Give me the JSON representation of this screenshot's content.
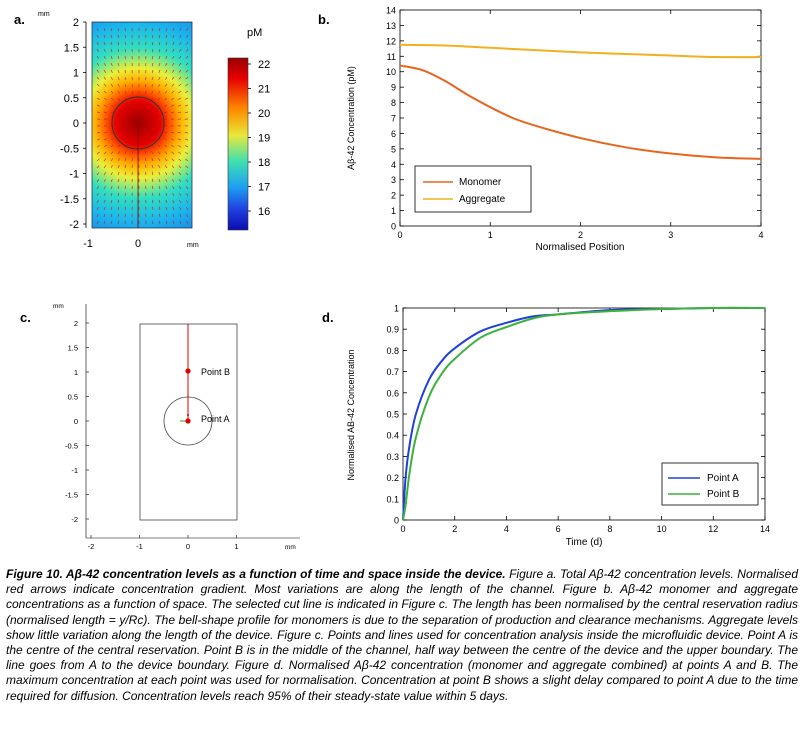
{
  "panels": {
    "a": {
      "letter": "a.",
      "axis_unit_top": "mm",
      "axis_unit_bottom": "mm",
      "y_ticks": [
        "2",
        "1.5",
        "1",
        "0.5",
        "0",
        "-0.5",
        "-1",
        "-1.5",
        "-2"
      ],
      "x_ticks": [
        "-1",
        "0"
      ],
      "colorbar_title": "pM",
      "colorbar_ticks": [
        "22",
        "21",
        "20",
        "19",
        "18",
        "17",
        "16"
      ]
    },
    "b": {
      "letter": "b.",
      "ylabel": "Aβ-42 Concentration (pM)",
      "xlabel": "Normalised Position",
      "y_ticks": [
        "0",
        "1",
        "2",
        "3",
        "4",
        "5",
        "6",
        "7",
        "8",
        "9",
        "10",
        "11",
        "12",
        "13",
        "14"
      ],
      "x_ticks": [
        "0",
        "1",
        "2",
        "3",
        "4"
      ],
      "legend": [
        "Monomer",
        "Aggregate"
      ]
    },
    "c": {
      "letter": "c.",
      "axis_unit_top": "mm",
      "axis_unit_bottom": "mm",
      "y_ticks": [
        "2",
        "1.5",
        "1",
        "0.5",
        "0",
        "-0.5",
        "-1",
        "-1.5",
        "-2"
      ],
      "x_ticks": [
        "-2",
        "-1",
        "0",
        "1"
      ],
      "point_a": "Point A",
      "point_b": "Point B"
    },
    "d": {
      "letter": "d.",
      "ylabel": "Normalised AB-42 Concentration",
      "xlabel": "Time (d)",
      "y_ticks": [
        "0",
        "0.1",
        "0.2",
        "0.3",
        "0.4",
        "0.5",
        "0.6",
        "0.7",
        "0.8",
        "0.9",
        "1"
      ],
      "x_ticks": [
        "0",
        "2",
        "4",
        "6",
        "8",
        "10",
        "12",
        "14"
      ],
      "legend": [
        "Point A",
        "Point B"
      ]
    }
  },
  "colors": {
    "monomer": "#e8641e",
    "aggregate": "#f2b01e",
    "point_a": "#2140d8",
    "point_b": "#3bb23b",
    "marker": "#e00000"
  },
  "chart_data": [
    {
      "type": "line",
      "panel": "b",
      "xlabel": "Normalised Position",
      "ylabel": "Aβ-42 Concentration (pM)",
      "xlim": [
        0,
        4
      ],
      "ylim": [
        0,
        14
      ],
      "legend_position": "bottom-left",
      "series": [
        {
          "name": "Monomer",
          "x": [
            0,
            0.25,
            0.5,
            0.75,
            1,
            1.25,
            1.5,
            2,
            2.5,
            3,
            3.5,
            4
          ],
          "values": [
            10.4,
            10.1,
            9.4,
            8.5,
            7.7,
            7.0,
            6.5,
            5.7,
            5.1,
            4.7,
            4.45,
            4.35
          ]
        },
        {
          "name": "Aggregate",
          "x": [
            0,
            0.5,
            1,
            1.5,
            2,
            2.5,
            3,
            3.5,
            4
          ],
          "values": [
            11.75,
            11.7,
            11.55,
            11.4,
            11.25,
            11.15,
            11.05,
            10.95,
            10.95
          ]
        }
      ]
    },
    {
      "type": "line",
      "panel": "d",
      "xlabel": "Time (d)",
      "ylabel": "Normalised AB-42 Concentration",
      "xlim": [
        0,
        14
      ],
      "ylim": [
        0,
        1
      ],
      "legend_position": "bottom-right",
      "series": [
        {
          "name": "Point A",
          "x": [
            0,
            0.1,
            0.25,
            0.5,
            1,
            1.5,
            2,
            3,
            4,
            5,
            6,
            8,
            10,
            12,
            14
          ],
          "values": [
            0.0,
            0.2,
            0.35,
            0.5,
            0.66,
            0.75,
            0.81,
            0.89,
            0.93,
            0.96,
            0.97,
            0.99,
            0.995,
            1.0,
            1.0
          ]
        },
        {
          "name": "Point B",
          "x": [
            0,
            0.1,
            0.25,
            0.5,
            1,
            1.5,
            2,
            3,
            4,
            5,
            6,
            8,
            10,
            12,
            14
          ],
          "values": [
            0.0,
            0.07,
            0.22,
            0.39,
            0.58,
            0.69,
            0.76,
            0.86,
            0.91,
            0.95,
            0.97,
            0.985,
            0.995,
            1.0,
            1.0
          ]
        }
      ]
    }
  ],
  "caption": {
    "title": "Figure 10. Aβ-42 concentration levels as a function of time and space inside the device.",
    "body": " Figure a. Total Aβ-42 concentration levels. Normalised red arrows indicate concentration gradient. Most variations are along the length of the channel. Figure b. Aβ-42 monomer and aggregate concentrations as a function of space. The selected cut line is indicated in Figure c. The length has been normalised by the central reservation radius (normalised length = y/Rᴄ). The bell-shape profile for monomers is due to the separation of production and clearance mechanisms. Aggregate levels show little variation along the length of the device. Figure c. Points and lines used for concentration analysis inside the microfluidic device. Point A is the centre of the central reservation. Point B is in the middle of the channel, half way between the centre of the device and the upper boundary. The line goes from A to the device boundary. Figure d. Normalised Aβ-42 concentration (monomer and aggregate combined) at points A and B. The maximum concentration at each point was used for normalisation. Concentration at point B shows a slight delay compared to point A due to the time required for diffusion. Concentration levels reach 95% of their steady-state value within 5 days."
  }
}
